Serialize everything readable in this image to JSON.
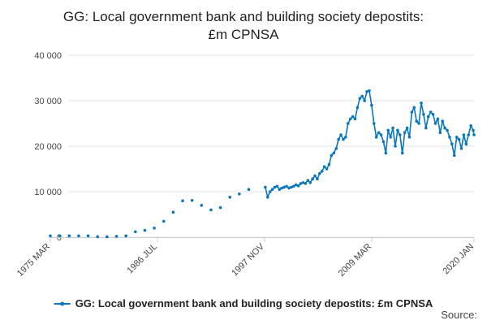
{
  "chart_data": {
    "type": "line",
    "title": "GG: Local government bank and building society depostits: £m CPNSA",
    "source": "Source:",
    "color": "#0a77bd",
    "grid": true,
    "legend": "bottom",
    "xlim": [
      "1975 MAR",
      "2020 JAN"
    ],
    "xticks": [
      "1975 MAR",
      "1986 JUL",
      "1997 NOV",
      "2009 MAR",
      "2020 JAN"
    ],
    "ylim": [
      0,
      40000
    ],
    "yticks": [
      0,
      {
        "value": 10000,
        "label": "10 000"
      },
      {
        "value": 20000,
        "label": "20 000"
      },
      {
        "value": 30000,
        "label": "30 000"
      },
      {
        "value": 40000,
        "label": "40 000"
      }
    ],
    "x": [
      "1975 MAR",
      "1976 MAR",
      "1977 MAR",
      "1978 MAR",
      "1979 MAR",
      "1980 MAR",
      "1981 MAR",
      "1982 MAR",
      "1983 MAR",
      "1984 MAR",
      "1985 MAR",
      "1986 MAR",
      "1987 MAR",
      "1988 MAR",
      "1989 MAR",
      "1990 MAR",
      "1991 MAR",
      "1992 MAR",
      "1993 MAR",
      "1994 MAR",
      "1995 MAR",
      "1996 MAR",
      "1997 DEC",
      "1998 MAR",
      "1998 JUN",
      "1998 SEP",
      "1998 DEC",
      "1999 MAR",
      "1999 JUN",
      "1999 SEP",
      "1999 DEC",
      "2000 MAR",
      "2000 JUN",
      "2000 SEP",
      "2000 DEC",
      "2001 MAR",
      "2001 JUN",
      "2001 SEP",
      "2001 DEC",
      "2002 MAR",
      "2002 JUN",
      "2002 SEP",
      "2002 DEC",
      "2003 MAR",
      "2003 JUN",
      "2003 SEP",
      "2003 DEC",
      "2004 MAR",
      "2004 JUN",
      "2004 SEP",
      "2004 DEC",
      "2005 MAR",
      "2005 JUN",
      "2005 SEP",
      "2005 DEC",
      "2006 MAR",
      "2006 JUN",
      "2006 SEP",
      "2006 DEC",
      "2007 MAR",
      "2007 JUN",
      "2007 SEP",
      "2007 DEC",
      "2008 MAR",
      "2008 JUN",
      "2008 SEP",
      "2008 DEC",
      "2009 MAR",
      "2009 JUN",
      "2009 SEP",
      "2009 DEC",
      "2010 MAR",
      "2010 JUN",
      "2010 SEP",
      "2010 DEC",
      "2011 MAR",
      "2011 JUN",
      "2011 SEP",
      "2011 DEC",
      "2012 MAR",
      "2012 JUN",
      "2012 SEP",
      "2012 DEC",
      "2013 MAR",
      "2013 JUN",
      "2013 SEP",
      "2013 DEC",
      "2014 MAR",
      "2014 JUN",
      "2014 SEP",
      "2014 DEC",
      "2015 MAR",
      "2015 JUN",
      "2015 SEP",
      "2015 DEC",
      "2016 MAR",
      "2016 JUN",
      "2016 SEP",
      "2016 DEC",
      "2017 MAR",
      "2017 JUN",
      "2017 SEP",
      "2017 DEC",
      "2018 MAR",
      "2018 JUN",
      "2018 SEP",
      "2018 DEC",
      "2019 MAR",
      "2019 JUN",
      "2019 SEP",
      "2019 DEC",
      "2020 JAN"
    ],
    "series": [
      {
        "name": "GG: Local government bank and building society depostits: £m CPNSA",
        "color": "#0a77bd",
        "values": [
          300,
          300,
          300,
          300,
          300,
          100,
          100,
          200,
          300,
          1200,
          1500,
          2000,
          3500,
          5500,
          8000,
          8100,
          7000,
          6000,
          6500,
          8800,
          9500,
          10500,
          11000,
          8800,
          10000,
          10500,
          11000,
          11200,
          10500,
          10800,
          11000,
          11200,
          10800,
          11000,
          11200,
          11500,
          11300,
          11800,
          12000,
          11800,
          12500,
          12000,
          12800,
          13500,
          12800,
          14000,
          14500,
          15500,
          15000,
          16000,
          18000,
          18500,
          19500,
          21500,
          22500,
          21500,
          22000,
          25000,
          26000,
          26500,
          26000,
          28500,
          30500,
          31000,
          30000,
          32000,
          32200,
          29000,
          25000,
          22000,
          23000,
          22500,
          21000,
          18500,
          23500,
          22000,
          24000,
          20000,
          23500,
          22500,
          18500,
          23000,
          24000,
          22000,
          27500,
          28500,
          25500,
          25000,
          29500,
          27000,
          24000,
          26500,
          27500,
          27000,
          25000,
          26000,
          23000,
          25500,
          24000,
          23500,
          22000,
          20500,
          18000,
          22000,
          21500,
          19500,
          22500,
          20500,
          22500,
          24500,
          23500,
          22500
        ]
      }
    ]
  }
}
